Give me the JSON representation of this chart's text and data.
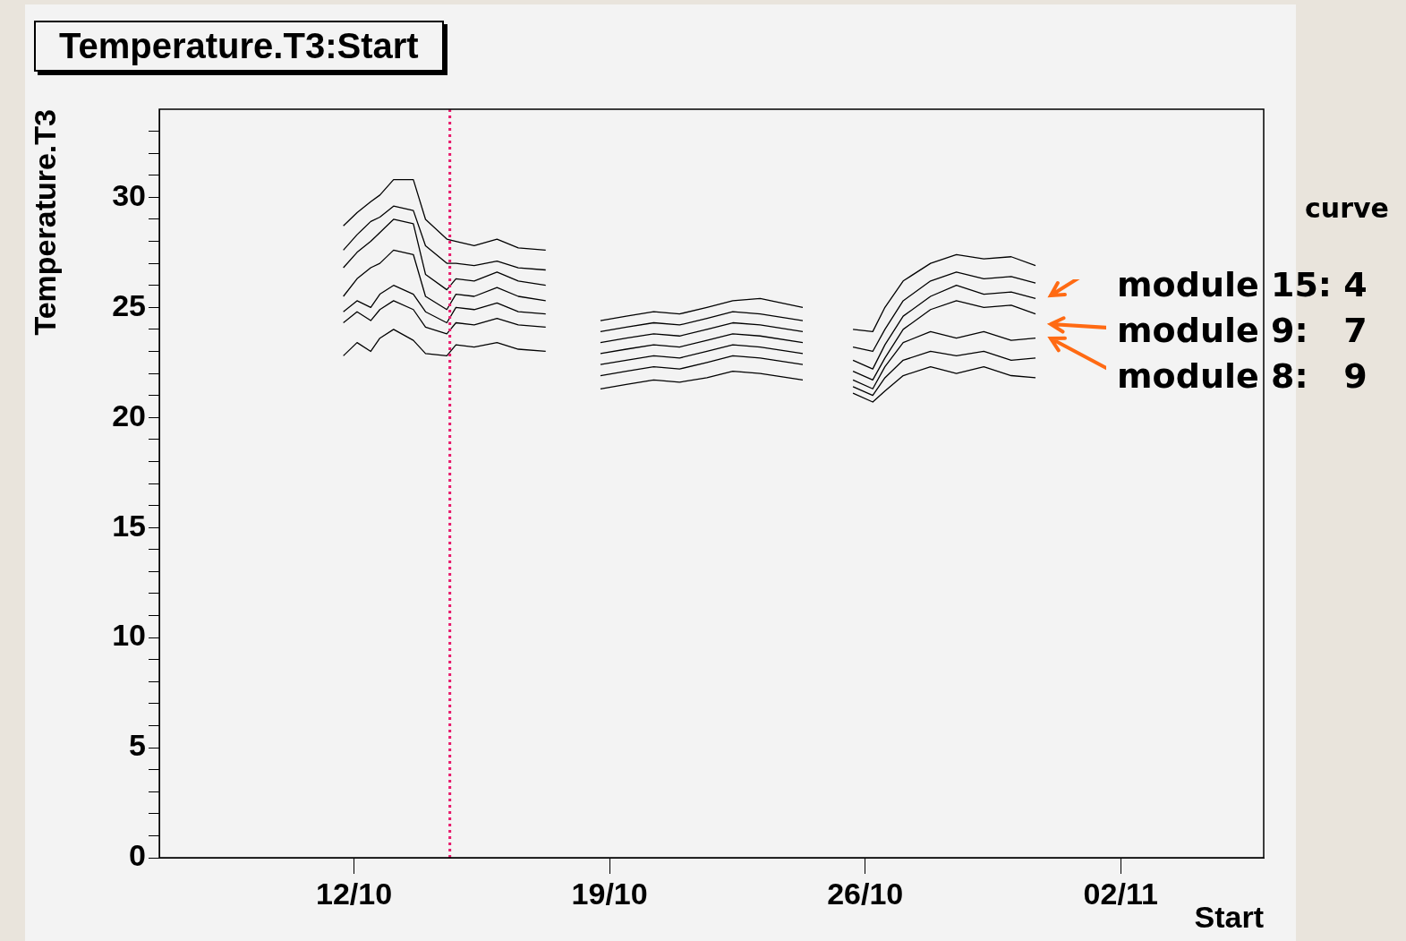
{
  "chart_data": {
    "type": "line",
    "title": "Temperature.T3:Start",
    "xlabel": "Start",
    "ylabel": "Temperature.T3",
    "x": [
      "--10-11T17:00",
      "--10-12T02:00",
      "--10-12T11:00",
      "--10-12T17:00",
      "--10-13T02:00",
      "--10-13T15:00",
      "--10-13T23:00",
      "--10-14T13:00",
      "--10-14T19:00",
      "--10-15T07:00",
      "--10-15T22:00",
      "--10-16T12:00",
      "--10-17T06:00",
      "--10-18T00:00",
      "--10-18T18:00",
      "--10-19T11:00",
      "--10-20T05:00",
      "--10-20T22:00",
      "--10-21T16:00",
      "--10-22T09:00",
      "--10-23T03:00",
      "--10-24T07:00",
      "--10-25T00:00",
      "--10-25T16:00",
      "--10-26T05:00",
      "--10-26T13:00",
      "--10-27T01:00",
      "--10-27T19:00",
      "--10-28T12:00",
      "--10-29T06:00",
      "--10-30T00:00",
      "--10-30T16:00"
    ],
    "series": [
      {
        "color": "#000000",
        "values": [
          28.7,
          29.3,
          29.8,
          30.1,
          30.8,
          30.8,
          29.0,
          28.1,
          28.0,
          27.8,
          28.1,
          27.7,
          27.6,
          null,
          24.4,
          24.6,
          24.8,
          24.7,
          25.0,
          25.3,
          25.4,
          25.0,
          null,
          24.0,
          23.9,
          25.0,
          26.2,
          27.0,
          27.4,
          27.2,
          27.3,
          26.9
        ]
      },
      {
        "color": "#000000",
        "values": [
          27.6,
          28.3,
          28.9,
          29.1,
          29.6,
          29.4,
          27.8,
          27.0,
          27.0,
          26.9,
          27.1,
          26.8,
          26.7,
          null,
          23.9,
          24.1,
          24.3,
          24.2,
          24.5,
          24.8,
          24.7,
          24.4,
          null,
          23.2,
          23.0,
          24.0,
          25.3,
          26.2,
          26.6,
          26.3,
          26.4,
          26.1
        ]
      },
      {
        "color": "#000000",
        "values": [
          26.8,
          27.5,
          28.0,
          28.4,
          29.0,
          28.8,
          26.5,
          25.8,
          26.3,
          26.2,
          26.6,
          26.2,
          26.0,
          null,
          23.4,
          23.6,
          23.8,
          23.7,
          24.0,
          24.3,
          24.2,
          23.9,
          null,
          22.6,
          22.2,
          23.3,
          24.6,
          25.5,
          26.0,
          25.6,
          25.7,
          25.4
        ]
      },
      {
        "color": "#000000",
        "values": [
          25.5,
          26.3,
          26.8,
          27.0,
          27.6,
          27.4,
          25.5,
          24.9,
          25.6,
          25.5,
          25.9,
          25.5,
          25.3,
          null,
          22.9,
          23.1,
          23.3,
          23.2,
          23.5,
          23.8,
          23.7,
          23.4,
          null,
          22.1,
          21.7,
          22.7,
          24.0,
          24.9,
          25.3,
          25.0,
          25.1,
          24.7
        ]
      },
      {
        "color": "#000000",
        "values": [
          24.8,
          25.3,
          25.0,
          25.6,
          26.0,
          25.6,
          24.8,
          24.3,
          25.0,
          24.9,
          25.2,
          24.8,
          24.7,
          null,
          22.4,
          22.6,
          22.8,
          22.7,
          23.0,
          23.3,
          23.2,
          22.9,
          null,
          21.7,
          21.3,
          22.3,
          23.4,
          23.9,
          23.6,
          23.9,
          23.5,
          23.6
        ]
      },
      {
        "color": "#000000",
        "values": [
          24.3,
          24.8,
          24.4,
          24.9,
          25.3,
          24.9,
          24.1,
          23.8,
          24.3,
          24.2,
          24.5,
          24.2,
          24.1,
          null,
          21.9,
          22.1,
          22.3,
          22.2,
          22.5,
          22.8,
          22.7,
          22.4,
          null,
          21.4,
          21.0,
          21.8,
          22.6,
          23.0,
          22.8,
          23.0,
          22.6,
          22.7
        ]
      },
      {
        "color": "#000000",
        "values": [
          22.8,
          23.4,
          23.0,
          23.6,
          24.0,
          23.5,
          22.9,
          22.8,
          23.3,
          23.2,
          23.4,
          23.1,
          23.0,
          null,
          21.3,
          21.5,
          21.7,
          21.6,
          21.8,
          22.1,
          22.0,
          21.7,
          null,
          21.1,
          20.7,
          21.2,
          21.9,
          22.3,
          22.0,
          22.3,
          21.9,
          21.8
        ]
      }
    ],
    "xlim": [
      "--10-06T16:00",
      "--11-05T22:00"
    ],
    "xticks": [
      {
        "value": "--10-12",
        "label": "12/10"
      },
      {
        "value": "--10-19",
        "label": "19/10"
      },
      {
        "value": "--10-26",
        "label": "26/10"
      },
      {
        "value": "--11-02",
        "label": "02/11"
      }
    ],
    "ylim": [
      0,
      34
    ],
    "yticks": [
      0,
      {
        "value": 1,
        "label": null
      },
      {
        "value": 2,
        "label": null
      },
      {
        "value": 3,
        "label": null
      },
      {
        "value": 4,
        "label": null
      },
      5,
      {
        "value": 6,
        "label": null
      },
      {
        "value": 7,
        "label": null
      },
      {
        "value": 8,
        "label": null
      },
      {
        "value": 9,
        "label": null
      },
      10,
      {
        "value": 11,
        "label": null
      },
      {
        "value": 12,
        "label": null
      },
      {
        "value": 13,
        "label": null
      },
      {
        "value": 14,
        "label": null
      },
      15,
      {
        "value": 16,
        "label": null
      },
      {
        "value": 17,
        "label": null
      },
      {
        "value": 18,
        "label": null
      },
      {
        "value": 19,
        "label": null
      },
      20,
      {
        "value": 21,
        "label": null
      },
      {
        "value": 22,
        "label": null
      },
      {
        "value": 23,
        "label": null
      },
      {
        "value": 24,
        "label": null
      },
      25,
      {
        "value": 26,
        "label": null
      },
      {
        "value": 27,
        "label": null
      },
      {
        "value": 28,
        "label": null
      },
      {
        "value": 29,
        "label": null
      },
      30,
      {
        "value": 31,
        "label": null
      },
      {
        "value": 32,
        "label": null
      },
      {
        "value": 33,
        "label": null
      }
    ],
    "ref_lines": [
      {
        "axis": "x",
        "value": "--10-14T15:00",
        "color": "#e8196b",
        "line_style": "dotted"
      }
    ],
    "annotations": [
      "curve",
      "module 15: 4",
      "module 9:   7",
      "module 8:   9"
    ],
    "grid": false,
    "legend": false,
    "marker": "none",
    "line_style": "solid"
  }
}
